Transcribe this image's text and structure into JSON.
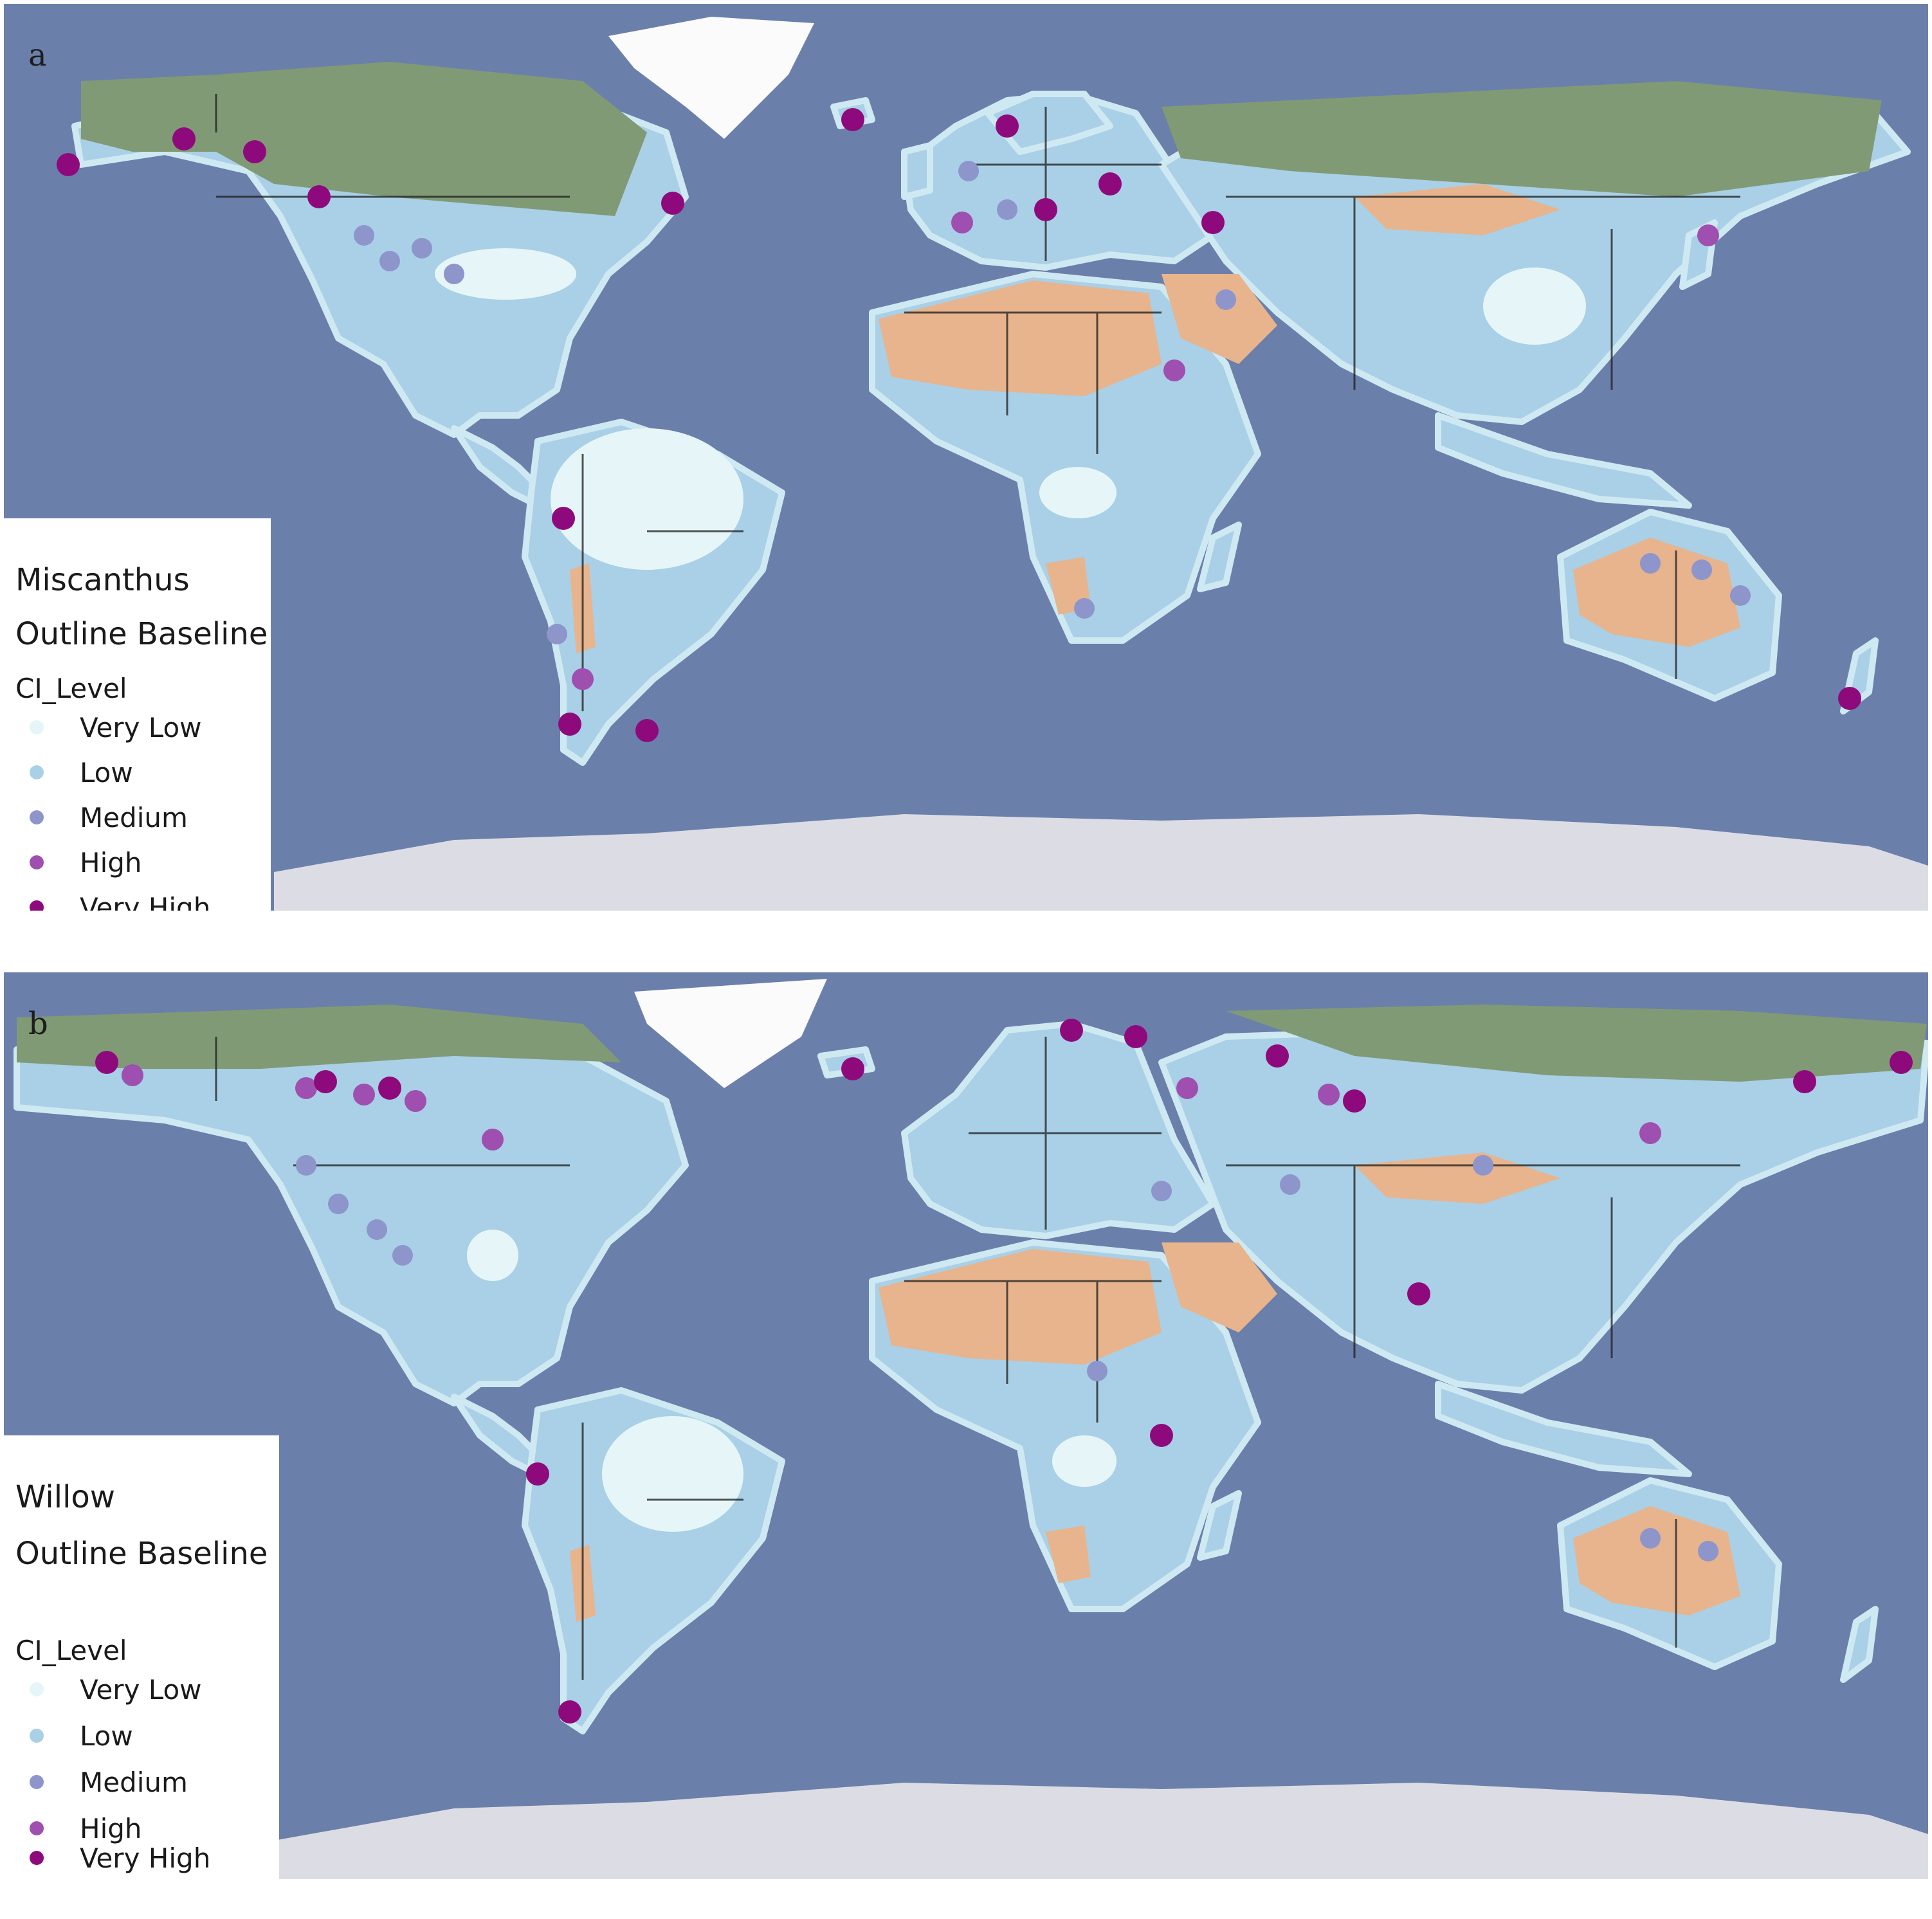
{
  "legend_colors": {
    "Very Low": "#e6f6f8",
    "Low": "#a9d0e6",
    "Medium": "#8d95cb",
    "High": "#9e4fb0",
    "Very High": "#8e0a7c"
  },
  "base_colors": {
    "ocean": "#6b7fab",
    "shelf": "#8d9cc6",
    "ice": "#dcdde4",
    "greenland": "#fbfbfb",
    "boreal": "#809a76",
    "desert": "#e7b48d",
    "border": "#1e1e1e"
  },
  "panels": [
    {
      "letter": "a",
      "crop": "Miscanthus",
      "subtitle": "Outline Baseline",
      "field": "CI_Level",
      "classes": [
        "Very Low",
        "Low",
        "Medium",
        "High",
        "Very High"
      ]
    },
    {
      "letter": "b",
      "crop": "Willow",
      "subtitle": "Outline Baseline",
      "field": "CI_Level",
      "classes": [
        "Very Low",
        "Low",
        "Medium",
        "High",
        "Very High"
      ]
    }
  ]
}
